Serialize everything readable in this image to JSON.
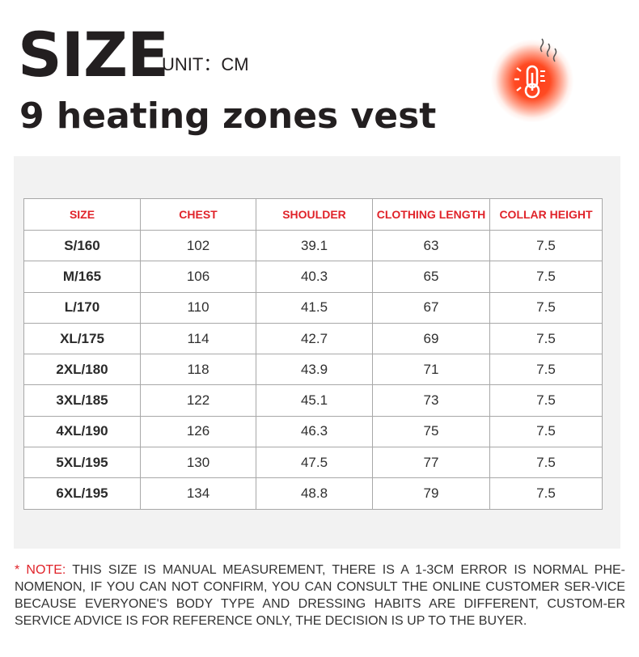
{
  "header": {
    "title": "SIZE",
    "unit": "UNIT：CM",
    "subtitle": "9 heating zones vest"
  },
  "icon": {
    "name": "heating-thermometer-icon",
    "glow_color": "#ff3b1a"
  },
  "colors": {
    "accent": "#e0232a",
    "panel_bg": "#f2f2f2",
    "border": "#a8a8a8"
  },
  "table": {
    "headers": [
      "SIZE",
      "CHEST",
      "SHOULDER",
      "CLOTHING LENGTH",
      "COLLAR HEIGHT"
    ],
    "rows": [
      [
        "S/160",
        "102",
        "39.1",
        "63",
        "7.5"
      ],
      [
        "M/165",
        "106",
        "40.3",
        "65",
        "7.5"
      ],
      [
        "L/170",
        "110",
        "41.5",
        "67",
        "7.5"
      ],
      [
        "XL/175",
        "114",
        "42.7",
        "69",
        "7.5"
      ],
      [
        "2XL/180",
        "118",
        "43.9",
        "71",
        "7.5"
      ],
      [
        "3XL/185",
        "122",
        "45.1",
        "73",
        "7.5"
      ],
      [
        "4XL/190",
        "126",
        "46.3",
        "75",
        "7.5"
      ],
      [
        "5XL/195",
        "130",
        "47.5",
        "77",
        "7.5"
      ],
      [
        "6XL/195",
        "134",
        "48.8",
        "79",
        "7.5"
      ]
    ]
  },
  "note": {
    "lead": "* NOTE:",
    "text": " THIS SIZE IS MANUAL MEASUREMENT, THERE IS A 1-3CM ERROR IS NORMAL PHE-NOMENON, IF YOU CAN NOT CONFIRM, YOU CAN CONSULT THE ONLINE CUSTOMER SER-VICE BECAUSE EVERYONE'S BODY TYPE AND DRESSING HABITS ARE DIFFERENT, CUSTOM-ER SERVICE ADVICE IS FOR REFERENCE ONLY, THE DECISION IS UP TO THE BUYER."
  }
}
